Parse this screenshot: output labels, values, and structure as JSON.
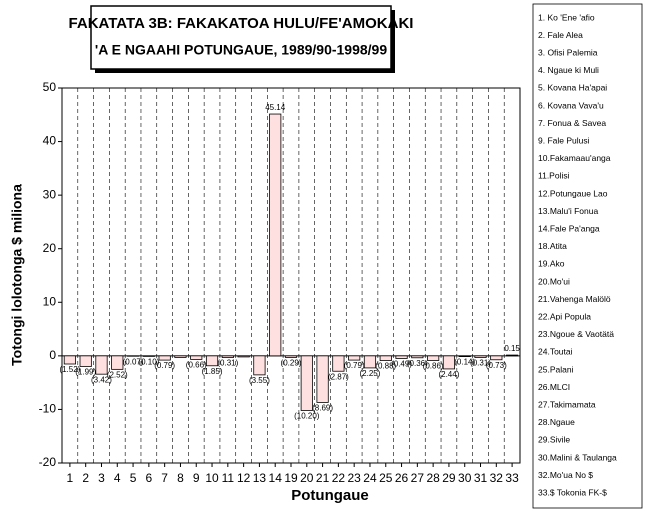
{
  "chart_data": {
    "type": "bar",
    "title": "FAKATATA 3B: FAKAKATOA HULU/FE'AMOKAKI",
    "subtitle": "'A E NGAAHI POTUNGAUE, 1989/90-1998/99",
    "x_label": "Potungaue",
    "y_label": "Totongi lolotonga $ miliona",
    "categories": [
      "1",
      "2",
      "3",
      "4",
      "5",
      "6",
      "7",
      "8",
      "9",
      "10",
      "11",
      "12",
      "13",
      "14",
      "19",
      "20",
      "21",
      "22",
      "23",
      "24",
      "25",
      "26",
      "27",
      "28",
      "29",
      "30",
      "31",
      "32",
      "33"
    ],
    "values": [
      -1.52,
      -1.99,
      -3.42,
      -2.52,
      -0.07,
      -0.1,
      -0.79,
      -0.3,
      -0.66,
      -1.85,
      -0.31,
      -0.2,
      -3.55,
      45.14,
      -0.29,
      -10.2,
      -8.69,
      -2.87,
      -0.79,
      -2.25,
      -0.88,
      -0.49,
      -0.36,
      -0.86,
      -2.44,
      -0.14,
      -0.31,
      -0.73,
      0.15
    ],
    "value_labels": [
      "(1.52)",
      "(1.99)",
      "(3.42)",
      "(2.52)",
      "(0.07)",
      "(0.10)",
      "(0.79)",
      null,
      "(0.66)",
      "(1.85)",
      "(0.31)",
      null,
      "(3.55)",
      "45.14",
      "(0.29)",
      "(10.20)",
      "(8.69)",
      "(2.87)",
      "(0.79)",
      "(2.25)",
      "(0.88)",
      "(0.49)",
      "(0.36)",
      "(0.86)",
      "(2.44)",
      "(0.14)",
      "(0.31)",
      "(0.73)",
      "0.15"
    ],
    "color": "#ffe0e0",
    "ylim": [
      -20,
      50
    ],
    "yticks": [
      -20,
      -10,
      0,
      10,
      20,
      30,
      40,
      50
    ],
    "grid": true,
    "legend_items": [
      "1. Ko 'Ene 'afio",
      "2. Fale Alea",
      "3. Ofisi Palemia",
      "4. Ngaue ki Muli",
      "5. Kovana Ha'apai",
      "6. Kovana Vava'u",
      "7. Fonua & Savea",
      "9. Fale Pulusi",
      "10.Fakamaau'anga",
      "11.Polisi",
      "12.Potungaue Lao",
      "13.Malu'i Fonua",
      "14.Fale Pa'anga",
      "18.Atita",
      "19.Ako",
      "20.Mo'ui",
      "21.Vahenga Malölö",
      "22.Api Popula",
      "23.Ngoue & Vaotätä",
      "24.Toutai",
      "25.Palani",
      "26.MLCI",
      "27.Takimamata",
      "28.Ngaue",
      "29.Sivile",
      "30.Malini & Taulanga",
      "32.Mo'ua No $",
      "33.$ Tokonia FK-$"
    ]
  }
}
